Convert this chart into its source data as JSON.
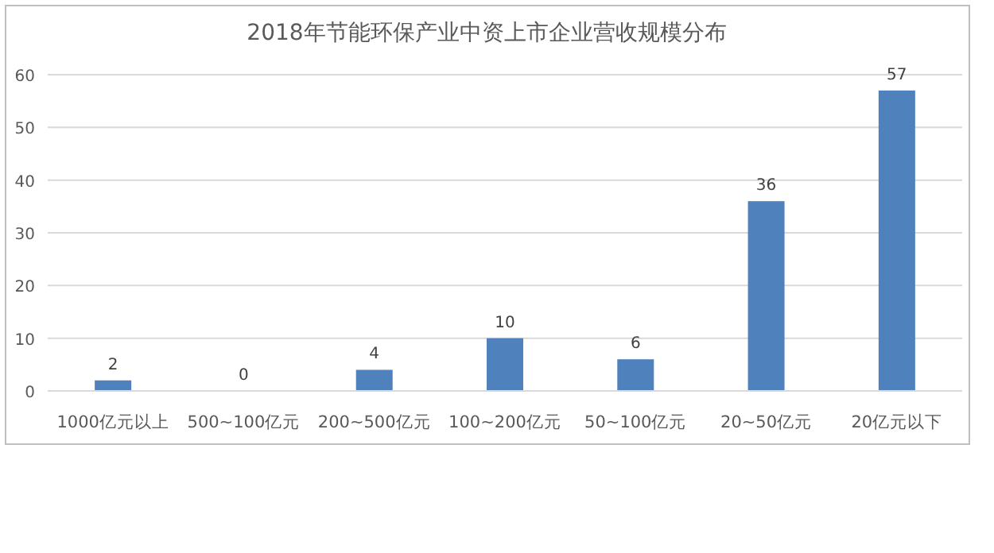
{
  "chart_data": {
    "type": "bar",
    "title": "2018年节能环保产业中资上市企业营收规模分布",
    "categories": [
      "1000亿元以上",
      "500~100亿元",
      "200~500亿元",
      "100~200亿元",
      "50~100亿元",
      "20~50亿元",
      "20亿元以下"
    ],
    "values": [
      2,
      0,
      4,
      10,
      6,
      36,
      57
    ],
    "color": "#4f81bd",
    "ylim": [
      0,
      60
    ],
    "yticks": [
      0,
      10,
      20,
      30,
      40,
      50,
      60
    ],
    "grid": "y",
    "data_labels": true
  }
}
